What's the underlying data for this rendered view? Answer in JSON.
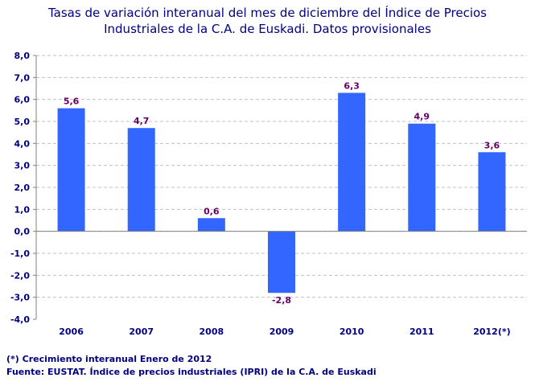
{
  "chart_data": {
    "type": "bar",
    "title_line1": "Tasas de variación interanual del mes de diciembre del Índice de Precios",
    "title_line2": "Industriales de la C.A. de Euskadi. Datos provisionales",
    "categories": [
      "2006",
      "2007",
      "2008",
      "2009",
      "2010",
      "2011",
      "2012(*)"
    ],
    "values": [
      5.6,
      4.7,
      0.6,
      -2.8,
      6.3,
      4.9,
      3.6
    ],
    "data_labels": [
      "5,6",
      "4,7",
      "0,6",
      "-2,8",
      "6,3",
      "4,9",
      "3,6"
    ],
    "ylim": [
      -4,
      8
    ],
    "yticks": [
      "-4,0",
      "-3,0",
      "-2,0",
      "-1,0",
      "0,0",
      "1,0",
      "2,0",
      "3,0",
      "4,0",
      "5,0",
      "6,0",
      "7,0",
      "8,0"
    ],
    "grid": true,
    "legend": "none",
    "colors": {
      "bar": "#3366ff",
      "text": "#000080",
      "label": "#660066",
      "grid": "#c0c0c0"
    }
  },
  "notes": {
    "footnote": "(*) Crecimiento interanual Enero de 2012",
    "source": "Fuente: EUSTAT. Índice de precios industriales (IPRI) de la C.A. de Euskadi"
  }
}
